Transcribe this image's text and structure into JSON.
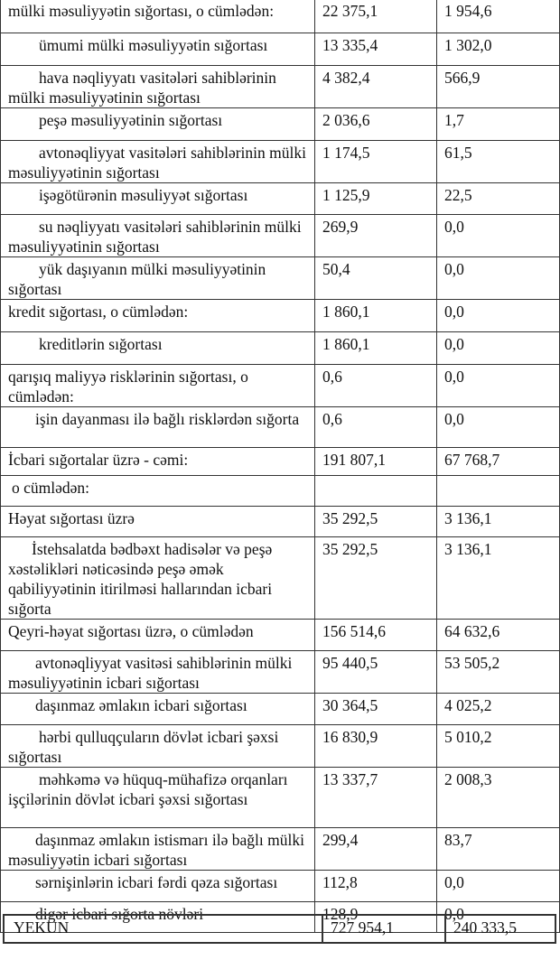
{
  "rows": [
    {
      "label": "mülki məsuliyyətin sığortası, o cümlədən:",
      "v1": "22 375,1",
      "v2": "1 954,6"
    },
    {
      "label": "ümumi mülki məsuliyyətin sığortası",
      "v1": "13 335,4",
      "v2": "1 302,0"
    },
    {
      "label": "hava nəqliyyatı vasitələri sahiblərinin mülki məsuliyyətinin sığortası",
      "v1": "4 382,4",
      "v2": "566,9"
    },
    {
      "label": "peşə məsuliyyətinin sığortası",
      "v1": "2 036,6",
      "v2": "1,7"
    },
    {
      "label": "avtonəqliyyat vasitələri sahiblərinin mülki məsuliyyətinin sığortası",
      "v1": "1 174,5",
      "v2": "61,5"
    },
    {
      "label": "işəgötürənin məsuliyyət sığortası",
      "v1": "1 125,9",
      "v2": "22,5"
    },
    {
      "label": "su nəqliyyatı vasitələri sahiblərinin mülki məsuliyyətinin sığortası",
      "v1": "269,9",
      "v2": "0,0"
    },
    {
      "label": "yük daşıyanın mülki məsuliyyətinin sığortası",
      "v1": "50,4",
      "v2": "0,0"
    },
    {
      "label": "kredit sığortası, o cümlədən:",
      "v1": "1 860,1",
      "v2": "0,0"
    },
    {
      "label": "kreditlərin sığortası",
      "v1": "1 860,1",
      "v2": "0,0"
    },
    {
      "label": "qarışıq maliyyə risklərinin sığortası,  o cümlədən:",
      "v1": "0,6",
      "v2": "0,0"
    },
    {
      "label": "işin dayanması ilə bağlı risklərdən sığorta",
      "v1": "0,6",
      "v2": "0,0"
    },
    {
      "label": "İcbari sığortalar üzrə - cəmi:",
      "v1": "191 807,1",
      "v2": "67 768,7"
    },
    {
      "label": "o cümlədən:",
      "v1": "",
      "v2": ""
    },
    {
      "label": "Həyat sığortası üzrə",
      "v1": "35 292,5",
      "v2": "3 136,1"
    },
    {
      "label": "İstehsalatda bədbəxt hadisələr və peşə xəstəlikləri nəticəsində peşə əmək qabiliyyətinin itirilməsi hallarından icbari sığorta",
      "v1": "35 292,5",
      "v2": "3 136,1"
    },
    {
      "label": "Qeyri-həyat sığortası üzrə, o cümlədən",
      "v1": "156 514,6",
      "v2": "64 632,6"
    },
    {
      "label": "avtonəqliyyat vasitəsi sahiblərinin mülki məsuliyyətinin icbari sığortası",
      "v1": "95 440,5",
      "v2": "53 505,2"
    },
    {
      "label": "daşınmaz əmlakın icbari sığortası",
      "v1": "30 364,5",
      "v2": "4 025,2"
    },
    {
      "label": "hərbi qulluqçuların dövlət icbari şəxsi sığortası",
      "v1": "16 830,9",
      "v2": "5 010,2"
    },
    {
      "label": "məhkəmə və hüquq-mühafizə orqanları işçilərinin dövlət icbari şəxsi sığortası",
      "v1": "13 337,7",
      "v2": "2 008,3"
    },
    {
      "label": "daşınmaz əmlakın istismarı ilə bağlı mülki məsuliyyətin icbari sığortası",
      "v1": "299,4",
      "v2": "83,7"
    },
    {
      "label": "sərnişinlərin icbari fərdi qəza sığortası",
      "v1": "112,8",
      "v2": "0,0"
    },
    {
      "label": "digər icbari sığorta növləri",
      "v1": "128,9",
      "v2": "0,0"
    }
  ],
  "total": {
    "label": "YEKUN",
    "v1": "727 954,1",
    "v2": "240 333,5"
  }
}
